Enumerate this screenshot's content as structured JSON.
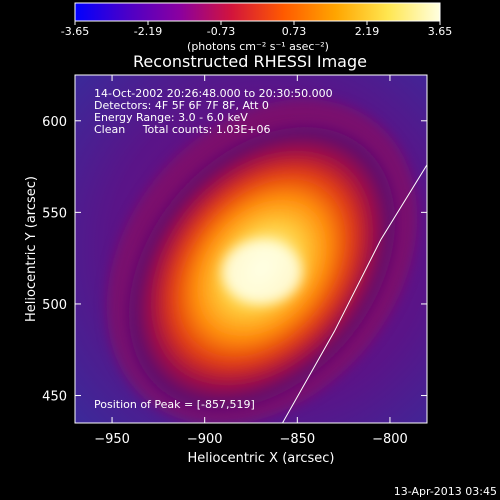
{
  "chart_data": {
    "type": "heatmap",
    "title": "Reconstructed RHESSI Image",
    "xlabel": "Heliocentric X (arcsec)",
    "ylabel": "Heliocentric Y (arcsec)",
    "xlim": [
      -970,
      -780
    ],
    "ylim": [
      435,
      625
    ],
    "x_ticks": [
      -950,
      -900,
      -850,
      -800
    ],
    "y_ticks": [
      450,
      500,
      550,
      600
    ],
    "colorbar": {
      "ticks": [
        "-3.65",
        "-2.19",
        "-0.73",
        "0.73",
        "2.19",
        "3.65"
      ],
      "units": "(photons cm⁻² s⁻¹ asec⁻²)",
      "range": [
        -3.65,
        3.65
      ],
      "colormap": [
        "#0000ff",
        "#4b00c8",
        "#8a00a0",
        "#d2143c",
        "#ff5a00",
        "#ffa500",
        "#ffe650",
        "#ffffe0"
      ]
    },
    "annotations": [
      "14-Oct-2002 20:26:48.000 to 20:30:50.000",
      "Detectors: 4F 5F 6F 7F 8F, Att 0",
      "Energy Range: 3.0 - 6.0 keV",
      "Clean     Total counts: 1.03E+06"
    ],
    "peak_text": "Position of Peak = [-857,519]",
    "peak": {
      "x": -857,
      "y": 519
    },
    "limb": [
      {
        "x": -858,
        "y": 435
      },
      {
        "x": -830,
        "y": 485
      },
      {
        "x": -805,
        "y": 535
      },
      {
        "x": -780,
        "y": 576
      }
    ],
    "limb_color": "#ffffff"
  },
  "timestamp": "13-Apr-2013 03:45"
}
